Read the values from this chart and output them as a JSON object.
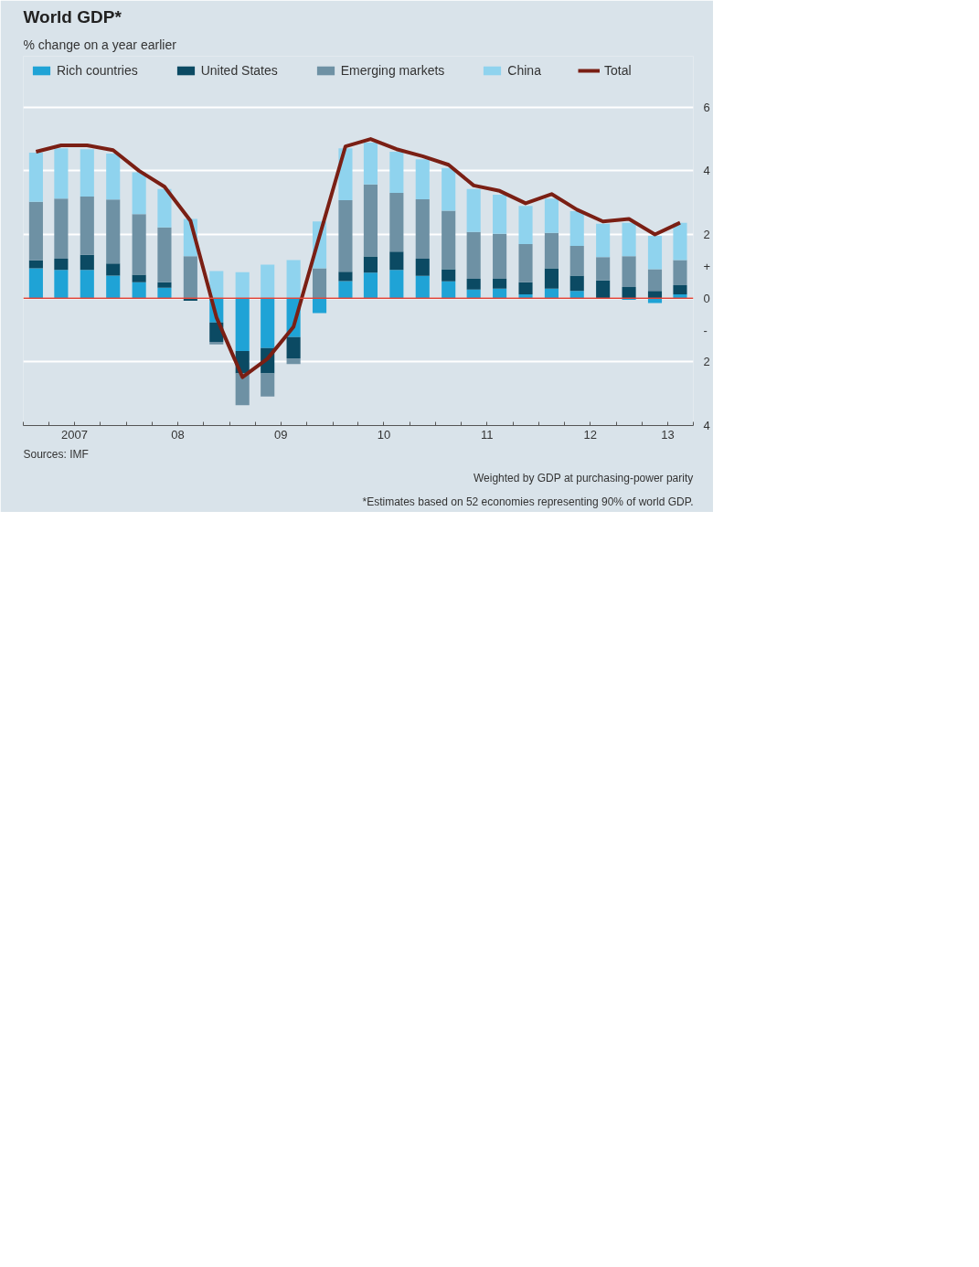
{
  "chart_data": {
    "type": "bar",
    "stacked": true,
    "title": "World GDP*",
    "subtitle": "% change on a year earlier",
    "x": [
      "2007-02-15",
      "2007-05-15",
      "2007-08-15",
      "2007-11-15",
      "2008-02-15",
      "2008-05-15",
      "2008-08-15",
      "2008-11-15",
      "2009-02-15",
      "2009-05-15",
      "2009-08-15",
      "2009-11-15",
      "2010-02-15",
      "2010-05-15",
      "2010-08-15",
      "2010-11-15",
      "2011-02-15",
      "2011-05-15",
      "2011-08-15",
      "2011-11-15",
      "2012-02-15",
      "2012-05-15",
      "2012-08-15",
      "2012-11-15",
      "2013-02-15",
      "2013-05-15"
    ],
    "series": [
      {
        "name": "Rich countries",
        "color": "#1fa3d6",
        "values": [
          0.94,
          0.89,
          0.89,
          0.71,
          0.5,
          0.33,
          0,
          -0.76,
          -1.66,
          -1.57,
          -1.22,
          -0.47,
          0.54,
          0.8,
          0.89,
          0.7,
          0.53,
          0.27,
          0.3,
          0.12,
          0.3,
          0.23,
          0,
          -0.05,
          -0.15,
          0.12
        ]
      },
      {
        "name": "United States",
        "color": "#0b4a63",
        "values": [
          0.25,
          0.35,
          0.47,
          0.38,
          0.24,
          0.17,
          -0.08,
          -0.61,
          -0.7,
          -0.79,
          -0.67,
          0,
          0.29,
          0.51,
          0.57,
          0.54,
          0.38,
          0.34,
          0.31,
          0.38,
          0.64,
          0.48,
          0.56,
          0.35,
          0.23,
          0.29
        ]
      },
      {
        "name": "Emerging markets",
        "color": "#6e91a4",
        "values": [
          1.84,
          1.89,
          1.83,
          2.01,
          1.9,
          1.72,
          1.32,
          -0.08,
          -1.0,
          -0.73,
          -0.18,
          0.94,
          2.25,
          2.26,
          1.85,
          1.87,
          1.84,
          1.47,
          1.41,
          1.2,
          1.11,
          0.93,
          0.73,
          0.97,
          0.68,
          0.79
        ]
      },
      {
        "name": "China",
        "color": "#8fd3ee",
        "values": [
          1.54,
          1.58,
          1.49,
          1.44,
          1.31,
          1.21,
          1.17,
          0.85,
          0.82,
          1.05,
          1.2,
          1.47,
          1.63,
          1.32,
          1.29,
          1.25,
          1.34,
          1.35,
          1.23,
          1.2,
          1.08,
          1.09,
          1.05,
          1.05,
          1.05,
          1.17
        ]
      },
      {
        "name": "Total",
        "type": "line",
        "color": "#7a1f14",
        "values": [
          4.6,
          4.8,
          4.8,
          4.65,
          4.0,
          3.5,
          2.43,
          -0.6,
          -2.48,
          -1.9,
          -0.9,
          1.95,
          4.77,
          5.0,
          4.68,
          4.46,
          4.19,
          3.54,
          3.37,
          2.98,
          3.27,
          2.78,
          2.41,
          2.49,
          2.0,
          2.37
        ]
      }
    ],
    "xlim": [
      "2007-01-01",
      "2013-07-01"
    ],
    "xticks": [
      {
        "value": "2007-01-01",
        "label": null
      },
      {
        "value": "2007-04-01",
        "label": null
      },
      {
        "value": "2007-07-01",
        "label": "2007"
      },
      {
        "value": "2007-10-01",
        "label": null
      },
      {
        "value": "2008-01-01",
        "label": null
      },
      {
        "value": "2008-04-01",
        "label": null
      },
      {
        "value": "2008-07-01",
        "label": "08"
      },
      {
        "value": "2008-10-01",
        "label": null
      },
      {
        "value": "2009-01-01",
        "label": null
      },
      {
        "value": "2009-04-01",
        "label": null
      },
      {
        "value": "2009-07-01",
        "label": "09"
      },
      {
        "value": "2009-10-01",
        "label": null
      },
      {
        "value": "2010-01-01",
        "label": null
      },
      {
        "value": "2010-04-01",
        "label": null
      },
      {
        "value": "2010-07-01",
        "label": "10"
      },
      {
        "value": "2010-10-01",
        "label": null
      },
      {
        "value": "2011-01-01",
        "label": null
      },
      {
        "value": "2011-04-01",
        "label": null
      },
      {
        "value": "2011-07-01",
        "label": "11"
      },
      {
        "value": "2011-10-01",
        "label": null
      },
      {
        "value": "2012-01-01",
        "label": null
      },
      {
        "value": "2012-04-01",
        "label": null
      },
      {
        "value": "2012-07-01",
        "label": "12"
      },
      {
        "value": "2012-10-01",
        "label": null
      },
      {
        "value": "2013-01-01",
        "label": null
      },
      {
        "value": "2013-04-01",
        "label": "13"
      },
      {
        "value": "2013-07-01",
        "label": null
      }
    ],
    "ylim": [
      -4,
      7.6
    ],
    "yticks": [
      6,
      4,
      2,
      {
        "value": 1,
        "label": "+"
      },
      0,
      {
        "value": -1,
        "label": "-"
      },
      {
        "value": -2,
        "label": "2"
      },
      {
        "value": -4,
        "label": "4"
      }
    ],
    "grid": "y",
    "legend": "top",
    "ref_lines": [
      {
        "axis": "y",
        "value": 0,
        "color": "#e0463a"
      }
    ],
    "annotations": [
      "*Estimates based on 52 economies representing 90% of world GDP.",
      "Weighted by GDP at purchasing-power parity",
      "Sources: IMF"
    ]
  }
}
